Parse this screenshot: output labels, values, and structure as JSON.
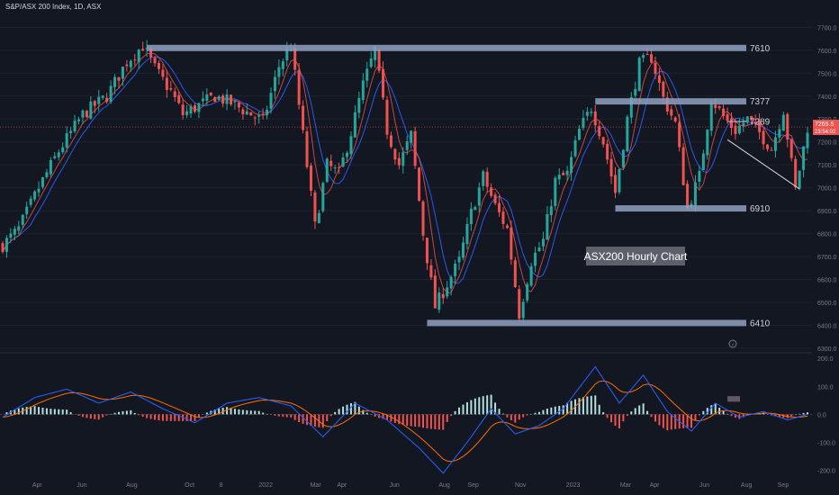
{
  "header": {
    "symbol_line": "S&P/ASX 200 Index, 1D, ASX"
  },
  "annotation": {
    "text": "ASX200 Hourly Chart"
  },
  "colors": {
    "background": "#131722",
    "up_candle": "#26a69a",
    "down_candle": "#ef5350",
    "level_band": "#8ea0bf",
    "ma_fast": "#ef5350",
    "ma_slow": "#2962ff",
    "macd_line": "#2962ff",
    "signal_line": "#ff6d00",
    "hist_up": "#b2dfdb",
    "hist_down": "#ef5350",
    "last_price_bg": "#ef5350",
    "axis_text": "#787b86",
    "grid": "#1e222d"
  },
  "price_axis": {
    "ticks": [
      "7700.0",
      "7600.0",
      "7500.0",
      "7400.0",
      "7300.0",
      "7200.0",
      "7100.0",
      "7000.0",
      "6900.0",
      "6800.0",
      "6700.0",
      "6600.0",
      "6500.0",
      "6400.0",
      "6300.0"
    ],
    "tick_values": [
      7700,
      7600,
      7500,
      7400,
      7300,
      7200,
      7100,
      7000,
      6900,
      6800,
      6700,
      6600,
      6500,
      6400,
      6300
    ],
    "range": [
      6280,
      7780
    ],
    "last_price": "7265.5",
    "countdown": "23:54:02"
  },
  "levels": [
    {
      "label": "7610",
      "value": 7610
    },
    {
      "label": "7377",
      "value": 7377
    },
    {
      "label": "7289",
      "value": 7289
    },
    {
      "label": "6910",
      "value": 6910
    },
    {
      "label": "6410",
      "value": 6410
    }
  ],
  "macd_axis": {
    "ticks": [
      "200.0",
      "100.0",
      "0.0",
      "-100.0",
      "-200.0"
    ],
    "tick_values": [
      200,
      100,
      0,
      -100,
      -200
    ],
    "range": [
      -230,
      210
    ]
  },
  "time_axis": {
    "labels": [
      "Apr",
      "Jun",
      "Aug",
      "Oct",
      "8",
      "2022",
      "Mar",
      "Apr",
      "Jun",
      "Aug",
      "Sep",
      "Nov",
      "2023",
      "Mar",
      "Apr",
      "Jun",
      "Aug",
      "Sep"
    ]
  },
  "chart_data": {
    "type": "candlestick",
    "timeframe": "1D",
    "price_path": [
      [
        0,
        6750
      ],
      [
        4,
        6820
      ],
      [
        9,
        7000
      ],
      [
        14,
        7160
      ],
      [
        20,
        7320
      ],
      [
        26,
        7400
      ],
      [
        31,
        7550
      ],
      [
        35,
        7620
      ],
      [
        38,
        7520
      ],
      [
        42,
        7420
      ],
      [
        45,
        7320
      ],
      [
        49,
        7360
      ],
      [
        53,
        7400
      ],
      [
        57,
        7370
      ],
      [
        61,
        7330
      ],
      [
        65,
        7290
      ],
      [
        69,
        7530
      ],
      [
        72,
        7620
      ],
      [
        75,
        7230
      ],
      [
        78,
        6830
      ],
      [
        81,
        7100
      ],
      [
        84,
        7060
      ],
      [
        87,
        7240
      ],
      [
        90,
        7450
      ],
      [
        93,
        7600
      ],
      [
        96,
        7250
      ],
      [
        99,
        7100
      ],
      [
        102,
        7230
      ],
      [
        105,
        6800
      ],
      [
        108,
        6480
      ],
      [
        111,
        6580
      ],
      [
        114,
        6680
      ],
      [
        117,
        6890
      ],
      [
        120,
        7050
      ],
      [
        123,
        6920
      ],
      [
        126,
        6820
      ],
      [
        129,
        6450
      ],
      [
        132,
        6680
      ],
      [
        135,
        6770
      ],
      [
        138,
        7030
      ],
      [
        141,
        7060
      ],
      [
        144,
        7250
      ],
      [
        147,
        7350
      ],
      [
        150,
        7200
      ],
      [
        153,
        6980
      ],
      [
        156,
        7300
      ],
      [
        159,
        7540
      ],
      [
        162,
        7570
      ],
      [
        165,
        7390
      ],
      [
        168,
        7280
      ],
      [
        171,
        6910
      ],
      [
        174,
        7050
      ],
      [
        177,
        7390
      ],
      [
        180,
        7310
      ],
      [
        183,
        7250
      ],
      [
        186,
        7300
      ],
      [
        189,
        7240
      ],
      [
        192,
        7170
      ],
      [
        195,
        7340
      ],
      [
        198,
        6990
      ],
      [
        201,
        7265
      ]
    ],
    "ma_fast_period": 20,
    "ma_slow_period": 50,
    "macd_path": [
      [
        0,
        -10
      ],
      [
        8,
        60
      ],
      [
        16,
        90
      ],
      [
        24,
        40
      ],
      [
        32,
        80
      ],
      [
        40,
        20
      ],
      [
        48,
        -30
      ],
      [
        56,
        40
      ],
      [
        64,
        60
      ],
      [
        72,
        30
      ],
      [
        80,
        -80
      ],
      [
        88,
        40
      ],
      [
        96,
        -20
      ],
      [
        104,
        -120
      ],
      [
        110,
        -210
      ],
      [
        116,
        -100
      ],
      [
        122,
        20
      ],
      [
        128,
        -70
      ],
      [
        134,
        -40
      ],
      [
        140,
        20
      ],
      [
        148,
        170
      ],
      [
        154,
        40
      ],
      [
        160,
        140
      ],
      [
        166,
        10
      ],
      [
        172,
        -60
      ],
      [
        178,
        40
      ],
      [
        184,
        -10
      ],
      [
        190,
        10
      ],
      [
        196,
        -20
      ],
      [
        201,
        0
      ]
    ],
    "trendline": {
      "from": [
        181,
        7210
      ],
      "to": [
        199,
        6995
      ]
    },
    "consolidation_box": {
      "x": [
        182,
        201
      ],
      "price": [
        7289,
        7289
      ]
    },
    "macd_highlight_box": {
      "x": [
        181,
        201
      ],
      "macd": [
        45,
        65
      ]
    }
  }
}
